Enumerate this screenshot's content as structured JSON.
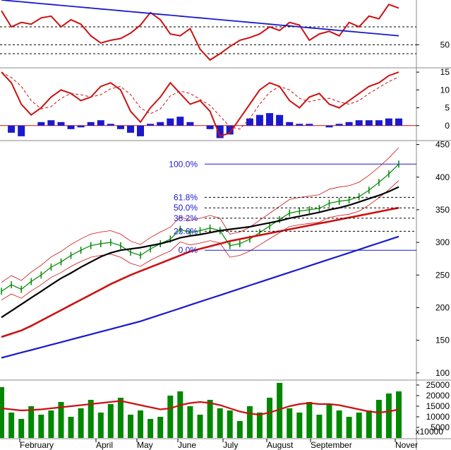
{
  "chart_data": [
    {
      "type": "line",
      "panel": "rsi",
      "y_ticks": [
        "50"
      ],
      "y_tick_values": [
        50
      ],
      "ylim": [
        25,
        100
      ],
      "reference_levels": [
        70,
        50,
        40
      ],
      "series": [
        {
          "color": "#cc1111",
          "values": [
            88,
            70,
            75,
            73,
            80,
            82,
            70,
            78,
            73,
            60,
            52,
            55,
            57,
            63,
            72,
            86,
            78,
            62,
            60,
            68,
            45,
            33,
            40,
            48,
            55,
            58,
            62,
            70,
            66,
            75,
            72,
            55,
            62,
            65,
            60,
            75,
            70,
            82,
            79,
            95,
            91
          ]
        },
        {
          "color": "#1a1acc",
          "values": [
            100,
            99,
            98,
            97,
            96,
            95,
            94,
            93,
            92,
            91,
            90,
            89,
            88,
            87,
            86,
            85,
            84,
            83,
            82,
            81,
            80,
            79,
            78,
            77,
            76,
            75,
            74,
            73,
            72,
            71,
            70,
            69,
            68,
            67,
            66,
            65,
            64,
            63,
            62,
            61,
            60
          ]
        }
      ]
    },
    {
      "type": "line",
      "panel": "macd",
      "y_ticks": [
        "15",
        "10",
        "5",
        "0"
      ],
      "y_tick_values": [
        15,
        10,
        5,
        0
      ],
      "ylim": [
        -4,
        16
      ],
      "series": [
        {
          "name_hidden": true,
          "color": "#cc1111",
          "values": [
            15,
            12,
            6,
            3,
            5,
            8,
            10,
            9,
            7,
            8,
            11,
            12,
            10,
            4,
            1,
            5,
            8,
            12,
            9,
            6,
            7,
            4,
            -3,
            -2,
            2,
            6,
            10,
            12,
            11,
            7,
            5,
            8,
            9,
            6,
            5,
            7,
            9,
            11,
            12,
            14,
            15
          ]
        },
        {
          "color": "#1a1acc",
          "bar": true,
          "values": [
            0,
            -2,
            -3,
            0,
            1,
            1.5,
            1,
            -1,
            -0.5,
            1,
            1.5,
            0.5,
            -1,
            -2,
            -3,
            0.5,
            1,
            2,
            2.5,
            1,
            0,
            -1,
            -3.5,
            -2.5,
            0,
            2,
            3,
            3.5,
            3,
            1,
            0.5,
            0.5,
            0,
            -0.5,
            0.5,
            1,
            1.5,
            1.5,
            1.5,
            2,
            2
          ]
        }
      ]
    },
    {
      "type": "line",
      "panel": "price",
      "y_ticks": [
        "450",
        "400",
        "350",
        "300",
        "250",
        "200",
        "150",
        "100"
      ],
      "y_tick_values": [
        450,
        400,
        350,
        300,
        250,
        200,
        150,
        100
      ],
      "ylim": [
        90,
        455
      ],
      "x_month_labels": [
        "February",
        "April",
        "May",
        "June",
        "July",
        "August",
        "September",
        "Nover"
      ],
      "fibonacci": [
        {
          "label": "100.0%",
          "value": 420
        },
        {
          "label": "61.8%",
          "value": 369
        },
        {
          "label": "50.0%",
          "value": 353
        },
        {
          "label": "38.2%",
          "value": 337
        },
        {
          "label": "23.6%",
          "value": 317
        },
        {
          "label": "0.0%",
          "value": 288
        }
      ],
      "series": [
        {
          "color": "#008800",
          "values": [
            225,
            235,
            228,
            240,
            250,
            262,
            270,
            280,
            288,
            295,
            298,
            300,
            295,
            285,
            280,
            290,
            298,
            305,
            320,
            315,
            318,
            322,
            318,
            295,
            298,
            305,
            315,
            325,
            335,
            345,
            348,
            350,
            352,
            360,
            363,
            365,
            370,
            380,
            392,
            405,
            420
          ]
        },
        {
          "color": "#000000",
          "values": [
            185,
            195,
            205,
            215,
            225,
            235,
            245,
            253,
            262,
            270,
            278,
            284,
            288,
            290,
            292,
            295,
            298,
            302,
            307,
            310,
            312,
            315,
            318,
            320,
            322,
            324,
            327,
            330,
            333,
            337,
            340,
            343,
            346,
            350,
            353,
            357,
            362,
            367,
            372,
            378,
            385
          ]
        },
        {
          "color": "#cc1111",
          "values": [
            155,
            160,
            165,
            172,
            180,
            188,
            196,
            204,
            212,
            220,
            228,
            236,
            243,
            250,
            256,
            262,
            268,
            274,
            280,
            286,
            290,
            294,
            298,
            302,
            305,
            308,
            311,
            314,
            317,
            320,
            323,
            326,
            329,
            332,
            335,
            338,
            341,
            344,
            347,
            350,
            353
          ]
        },
        {
          "color": "#1a1acc",
          "values": [
            123,
            127,
            131,
            135,
            139,
            143,
            147,
            151,
            155,
            159,
            163,
            167,
            171,
            175,
            179,
            184,
            189,
            194,
            199,
            204,
            209,
            214,
            219,
            224,
            229,
            234,
            239,
            244,
            249,
            254,
            259,
            264,
            269,
            274,
            279,
            284,
            289,
            294,
            299,
            304,
            309
          ]
        }
      ]
    },
    {
      "type": "bar",
      "panel": "volume",
      "y_ticks": [
        "25000",
        "20000",
        "15000",
        "10000",
        "5000"
      ],
      "y_tick_values": [
        25000,
        20000,
        15000,
        10000,
        5000
      ],
      "ylim": [
        0,
        27000
      ],
      "scale_note": "x10000",
      "series": [
        {
          "color": "#008800",
          "values": [
            24000,
            12000,
            9000,
            15000,
            11000,
            13000,
            17000,
            10000,
            14000,
            18000,
            12000,
            16000,
            19000,
            11000,
            13000,
            9000,
            10000,
            20000,
            22000,
            15000,
            11000,
            18000,
            14000,
            13000,
            8000,
            15000,
            12000,
            19000,
            26000,
            14000,
            12000,
            17000,
            11000,
            16000,
            13000,
            10000,
            12000,
            13000,
            18000,
            21000,
            22000
          ]
        },
        {
          "color": "#cc1111",
          "values": [
            14000,
            13500,
            13000,
            13200,
            13500,
            14000,
            14500,
            15000,
            15500,
            16000,
            16500,
            17000,
            17500,
            16500,
            15500,
            14500,
            13500,
            14000,
            15500,
            16500,
            17000,
            16500,
            15500,
            14000,
            12500,
            11500,
            11000,
            12000,
            13500,
            15000,
            16000,
            16500,
            16000,
            16000,
            15500,
            14500,
            13500,
            12500,
            12000,
            12500,
            13500
          ]
        }
      ]
    }
  ]
}
